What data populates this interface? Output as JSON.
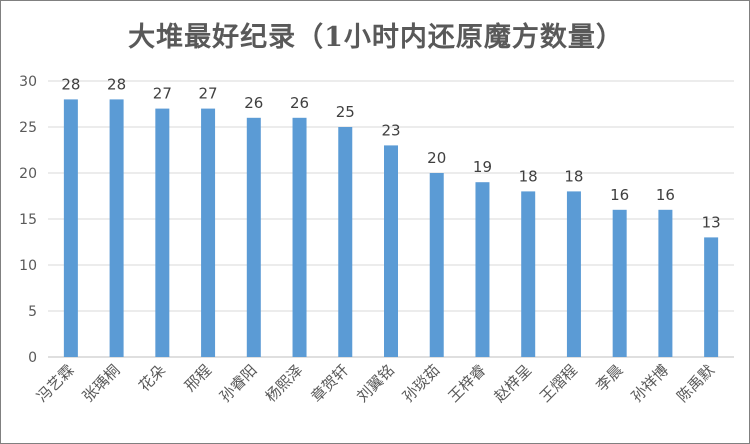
{
  "chart_data": {
    "type": "bar",
    "title": "大堆最好纪录（1小时内还原魔方数量）",
    "categories": [
      "冯艺霖",
      "张瑀桐",
      "花朵",
      "邢程",
      "孙睿阳",
      "杨熙泽",
      "章贺轩",
      "刘翼铭",
      "孙琰茹",
      "王梓睿",
      "赵梓呈",
      "王熠程",
      "李晨",
      "孙祥博",
      "陈禹默"
    ],
    "values": [
      28,
      28,
      27,
      27,
      26,
      26,
      25,
      23,
      20,
      19,
      18,
      18,
      16,
      16,
      13
    ],
    "ylim": [
      0,
      30
    ],
    "yticks": [
      0,
      5,
      10,
      15,
      20,
      25,
      30
    ],
    "grid": true,
    "data_labels": true,
    "bar_color": "#5B9BD5"
  }
}
